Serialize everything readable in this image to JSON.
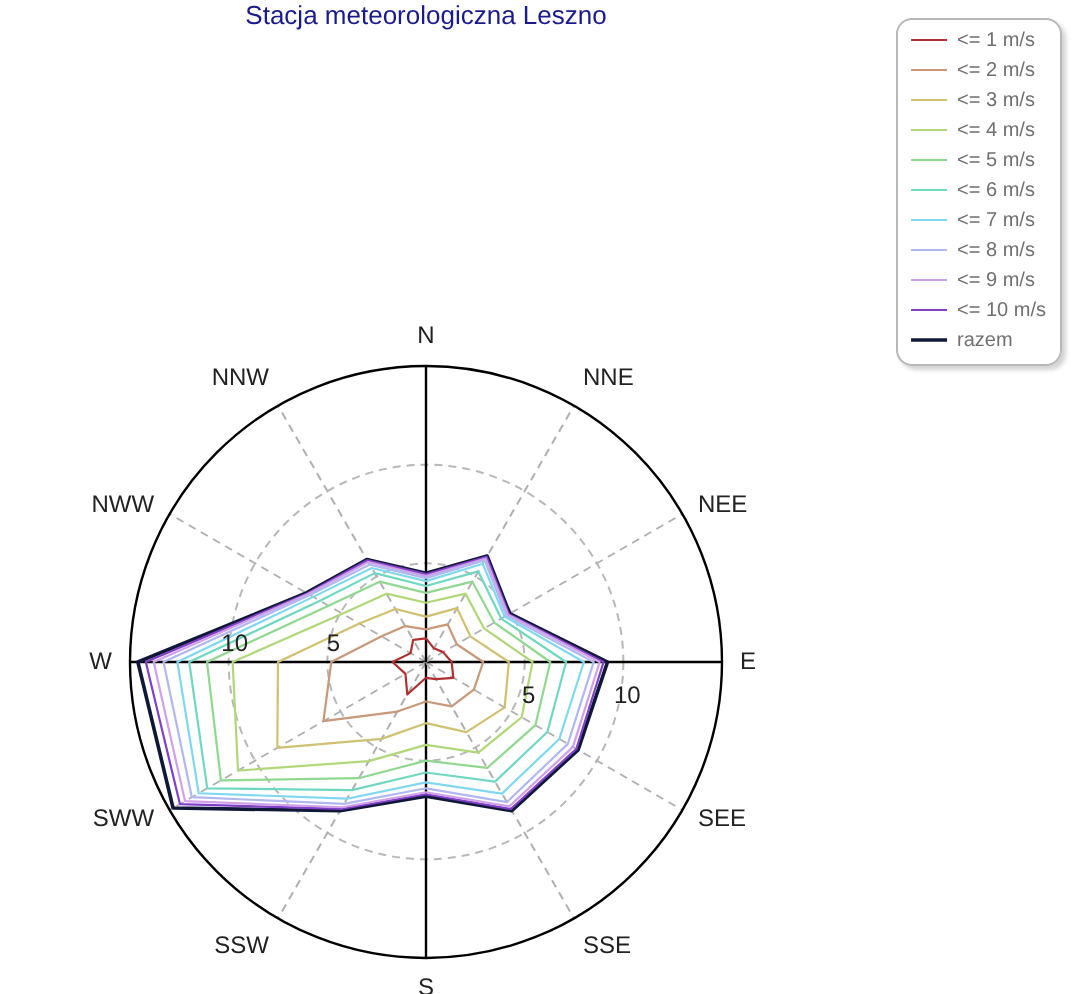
{
  "chart_data": {
    "type": "radar",
    "title": "Stacja meteorologiczna Leszno",
    "categories": [
      "N",
      "NNE",
      "NEE",
      "E",
      "SEE",
      "SSE",
      "S",
      "SSW",
      "SWW",
      "W",
      "NWW",
      "NNW"
    ],
    "series": [
      {
        "name": "<= 1 m/s",
        "color": "#b03030",
        "values": [
          1.2,
          0.8,
          1.0,
          1.3,
          1.6,
          1.0,
          0.8,
          1.9,
          1.2,
          1.7,
          0.9,
          1.3
        ]
      },
      {
        "name": "<= 2 m/s",
        "color": "#c89878",
        "values": [
          1.65,
          2.2,
          1.8,
          2.9,
          2.8,
          2.6,
          2.0,
          2.9,
          6.0,
          4.8,
          2.6,
          2.1
        ]
      },
      {
        "name": "<= 3 m/s",
        "color": "#d0c070",
        "values": [
          2.3,
          3.15,
          2.6,
          4.2,
          4.6,
          4.1,
          3.1,
          4.5,
          8.7,
          7.5,
          3.9,
          3.1
        ]
      },
      {
        "name": "<= 4 m/s",
        "color": "#b0d878",
        "values": [
          3.0,
          4.0,
          3.4,
          5.4,
          5.6,
          5.3,
          4.2,
          5.8,
          11.0,
          9.8,
          4.9,
          4.0
        ]
      },
      {
        "name": "<= 5 m/s",
        "color": "#90d890",
        "values": [
          3.5,
          4.7,
          4.0,
          6.3,
          6.4,
          6.2,
          5.0,
          6.8,
          12.0,
          11.1,
          5.7,
          4.7
        ]
      },
      {
        "name": "<= 6 m/s",
        "color": "#70d8c0",
        "values": [
          3.85,
          5.3,
          4.4,
          7.1,
          7.1,
          7.0,
          5.6,
          7.5,
          12.8,
          12.0,
          6.2,
          5.2
        ]
      },
      {
        "name": "<= 7 m/s",
        "color": "#80d8f0",
        "values": [
          4.1,
          5.75,
          4.6,
          8.0,
          7.8,
          7.7,
          6.1,
          8.0,
          13.3,
          12.6,
          6.6,
          5.5
        ]
      },
      {
        "name": "<= 8 m/s",
        "color": "#b0b8f0",
        "values": [
          4.25,
          5.95,
          4.7,
          8.5,
          8.3,
          8.2,
          6.4,
          8.3,
          13.7,
          13.3,
          6.8,
          5.7
        ]
      },
      {
        "name": "<= 9 m/s",
        "color": "#d0a0e8",
        "values": [
          4.35,
          6.05,
          4.8,
          8.8,
          8.6,
          8.45,
          6.6,
          8.5,
          14.1,
          13.8,
          6.9,
          5.85
        ]
      },
      {
        "name": "<= 10 m/s",
        "color": "#8040c8",
        "values": [
          4.45,
          6.15,
          4.85,
          9.0,
          8.8,
          8.6,
          6.7,
          8.6,
          14.4,
          14.2,
          6.95,
          5.95
        ]
      },
      {
        "name": "razem",
        "color": "#101838",
        "values": [
          4.5,
          6.2,
          4.9,
          9.2,
          8.9,
          8.7,
          6.8,
          8.7,
          14.8,
          14.6,
          7.0,
          6.0
        ]
      }
    ],
    "ylim": [
      0,
      15
    ],
    "yticks": [
      5,
      10
    ],
    "annotations": [
      "5",
      "10"
    ],
    "grid": true,
    "legend": "top right",
    "marker": "none"
  }
}
